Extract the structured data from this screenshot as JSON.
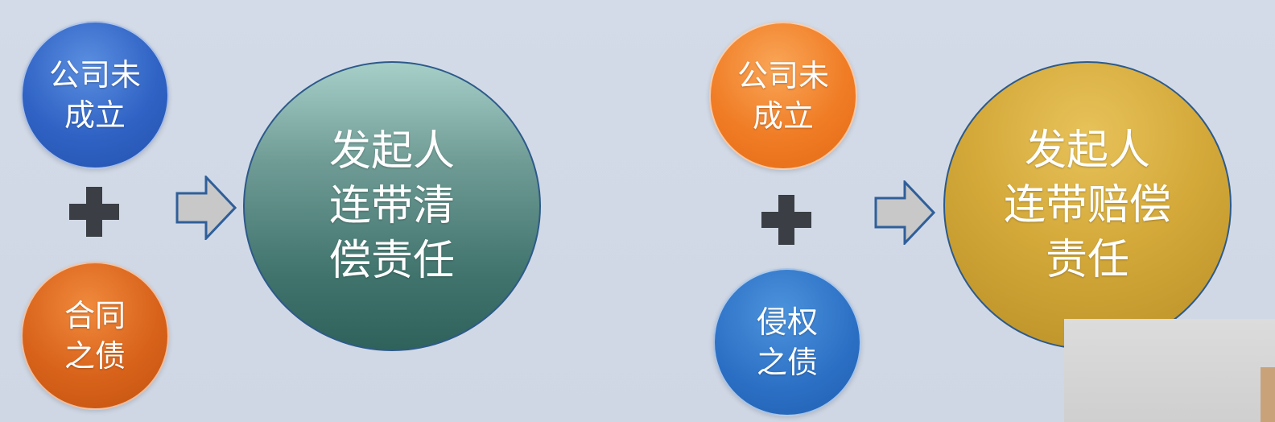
{
  "left": {
    "top_circle": "公司未\n成立",
    "bottom_circle": "合同\n之债",
    "result": "发起人\n连带清\n偿责任"
  },
  "right": {
    "top_circle": "公司未\n成立",
    "bottom_circle": "侵权\n之债",
    "result": "发起人\n连带赔偿\n责任"
  },
  "icons": {
    "plus": "plus-icon",
    "arrow": "right-arrow-icon"
  },
  "colors": {
    "blue": "#2f62c4",
    "orange_dark": "#d8621a",
    "orange": "#f07c25",
    "teal": "#3f736c",
    "gold": "#d4a93a",
    "plus": "#3b3f45",
    "arrow_fill": "#c8c8c8"
  }
}
